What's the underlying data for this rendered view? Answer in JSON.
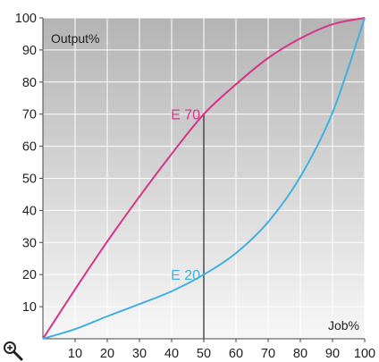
{
  "chart_data": {
    "type": "line",
    "xlabel": "Job%",
    "ylabel": "Output%",
    "xlim": [
      0,
      100
    ],
    "ylim": [
      0,
      100
    ],
    "x_ticks": [
      10,
      20,
      30,
      40,
      50,
      60,
      70,
      80,
      90,
      100
    ],
    "y_ticks": [
      10,
      20,
      30,
      40,
      50,
      60,
      70,
      80,
      90,
      100
    ],
    "grid": true,
    "series": [
      {
        "name": "E 70",
        "color": "#d6338a",
        "x": [
          0,
          10,
          20,
          30,
          40,
          50,
          60,
          70,
          80,
          90,
          100
        ],
        "y": [
          0,
          15.4,
          30.3,
          44.3,
          57.6,
          70,
          79.3,
          87.5,
          93.6,
          98,
          100
        ]
      },
      {
        "name": "E 20",
        "color": "#40b0e0",
        "x": [
          0,
          10,
          20,
          30,
          40,
          50,
          60,
          70,
          80,
          90,
          100
        ],
        "y": [
          0,
          3,
          7,
          10.8,
          14.8,
          20,
          26.7,
          36.4,
          50.5,
          70.5,
          100
        ]
      }
    ],
    "marker_line": {
      "x": 50,
      "y": 70,
      "color": "#333333"
    },
    "colors": {
      "background_top": "#b4b4b4",
      "background_bottom": "#f7f7f7",
      "grid": "#ffffff"
    }
  },
  "toolbar": {
    "zoom_icon": "zoom-in-icon"
  }
}
